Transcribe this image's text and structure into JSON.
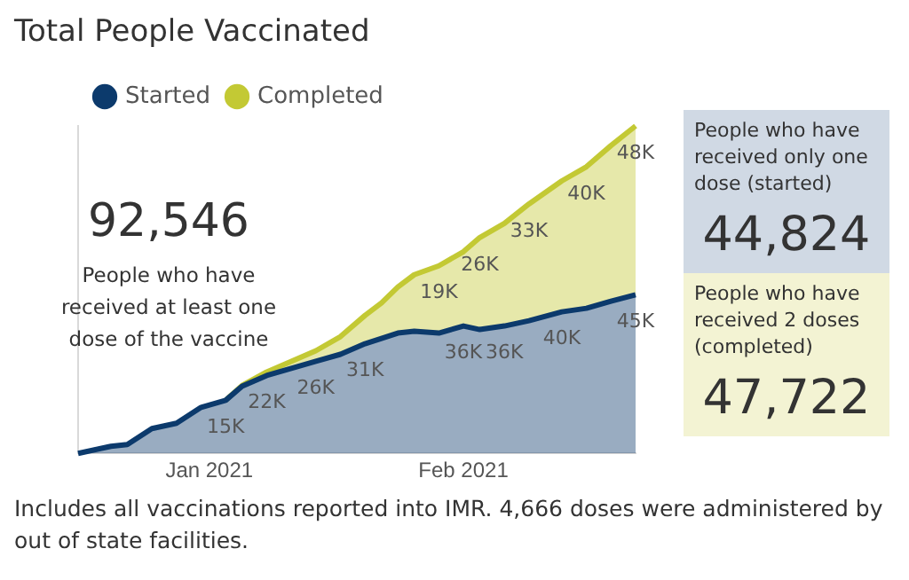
{
  "chart_data": {
    "type": "area",
    "stacked": true,
    "title": "Total People Vaccinated",
    "x": [
      "2020-12-16",
      "2020-12-20",
      "2020-12-22",
      "2020-12-25",
      "2020-12-28",
      "2020-12-31",
      "2021-01-03",
      "2021-01-05",
      "2021-01-08",
      "2021-01-14",
      "2021-01-17",
      "2021-01-20",
      "2021-01-22",
      "2021-01-24",
      "2021-01-26",
      "2021-01-29",
      "2021-02-01",
      "2021-02-03",
      "2021-02-06",
      "2021-02-09",
      "2021-02-13",
      "2021-02-16",
      "2021-02-19",
      "2021-02-22"
    ],
    "xticks": [
      {
        "value": "2021-01-01",
        "label": "Jan 2021"
      },
      {
        "value": "2021-02-01",
        "label": "Feb 2021"
      }
    ],
    "xlim": [
      "2020-12-16",
      "2021-02-22"
    ],
    "ylim": [
      0,
      92546
    ],
    "tick_labels": "x",
    "grid": false,
    "legend": "top left",
    "series": [
      {
        "name": "Started",
        "color": "#0c3a6c",
        "values": [
          0,
          2000,
          2500,
          7000,
          8500,
          13000,
          15000,
          19000,
          22000,
          26000,
          28000,
          31000,
          32500,
          34000,
          34500,
          34000,
          36000,
          35000,
          36000,
          37500,
          40000,
          41000,
          43000,
          44824
        ],
        "value_labels": [
          null,
          null,
          null,
          null,
          null,
          null,
          "15K",
          null,
          "22K",
          "26K",
          null,
          "31K",
          null,
          null,
          null,
          null,
          "36K",
          null,
          "36K",
          null,
          "40K",
          null,
          null,
          "45K"
        ]
      },
      {
        "name": "Completed",
        "color": "#c3c934",
        "values": [
          null,
          null,
          null,
          null,
          null,
          null,
          0,
          200,
          1000,
          3000,
          5000,
          8000,
          10000,
          13000,
          16000,
          19000,
          21000,
          26000,
          29000,
          33000,
          37000,
          40000,
          44000,
          47722
        ],
        "value_labels": [
          null,
          null,
          null,
          null,
          null,
          null,
          null,
          null,
          null,
          null,
          null,
          null,
          null,
          null,
          null,
          "19K",
          null,
          "26K",
          null,
          "33K",
          null,
          "40K",
          null,
          "48K"
        ]
      }
    ],
    "annotations": [
      "92,546",
      "People who have received at least one dose of the vaccine",
      "People who have received only one dose (started)",
      "44,824",
      "People who have received 2 doses (completed)",
      "47,722",
      "Includes all vaccinations reported into IMR. 4,666 doses were administered by out of state facilities."
    ]
  }
}
